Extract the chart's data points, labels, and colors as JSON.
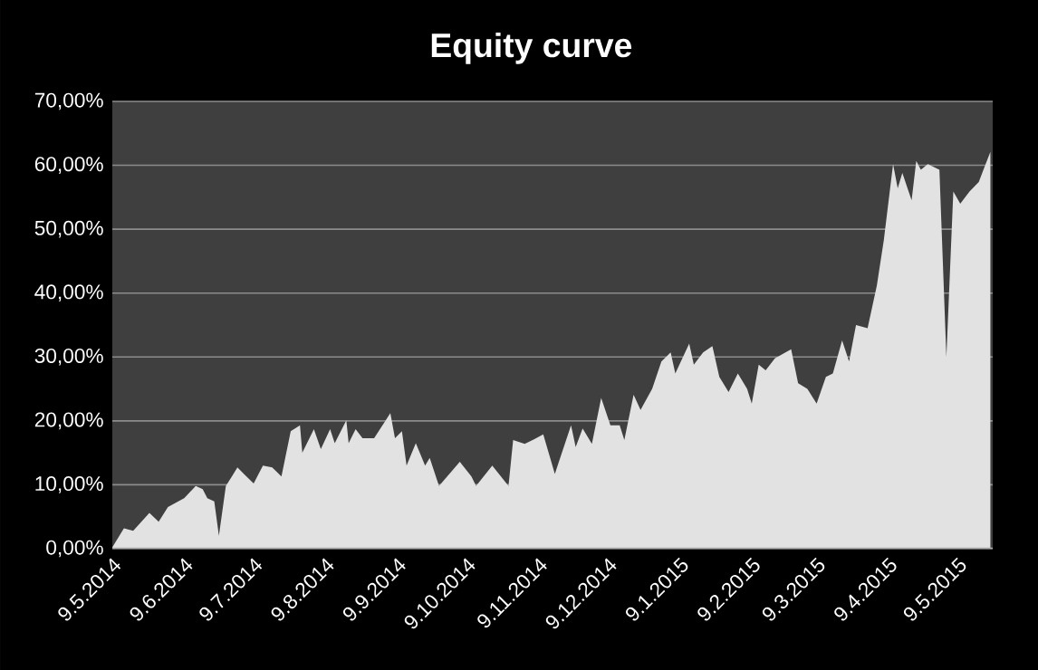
{
  "chart_data": {
    "type": "area",
    "title": "Equity curve",
    "color": "#e2e2e2",
    "grid": "y",
    "x": [
      "2014-05-09",
      "2014-05-14",
      "2014-05-18",
      "2014-05-25",
      "2014-05-29",
      "2014-06-02",
      "2014-06-09",
      "2014-06-14",
      "2014-06-17",
      "2014-06-19",
      "2014-06-22",
      "2014-06-24",
      "2014-06-27",
      "2014-07-02",
      "2014-07-05",
      "2014-07-09",
      "2014-07-13",
      "2014-07-17",
      "2014-07-21",
      "2014-07-25",
      "2014-07-29",
      "2014-07-30",
      "2014-08-04",
      "2014-08-07",
      "2014-08-11",
      "2014-08-13",
      "2014-08-18",
      "2014-08-19",
      "2014-08-22",
      "2014-08-25",
      "2014-08-30",
      "2014-09-04",
      "2014-09-06",
      "2014-09-08",
      "2014-09-11",
      "2014-09-13",
      "2014-09-17",
      "2014-09-21",
      "2014-09-23",
      "2014-09-27",
      "2014-10-06",
      "2014-10-11",
      "2014-10-13",
      "2014-10-20",
      "2014-10-27",
      "2014-10-29",
      "2014-11-03",
      "2014-11-07",
      "2014-11-11",
      "2014-11-16",
      "2014-11-23",
      "2014-11-25",
      "2014-11-28",
      "2014-12-02",
      "2014-12-06",
      "2014-12-10",
      "2014-12-14",
      "2014-12-16",
      "2014-12-20",
      "2014-12-23",
      "2014-12-28",
      "2015-01-01",
      "2015-01-05",
      "2015-01-07",
      "2015-01-13",
      "2015-01-15",
      "2015-01-19",
      "2015-01-23",
      "2015-01-26",
      "2015-01-30",
      "2015-02-03",
      "2015-02-07",
      "2015-02-09",
      "2015-02-12",
      "2015-02-15",
      "2015-02-19",
      "2015-02-26",
      "2015-03-01",
      "2015-03-05",
      "2015-03-09",
      "2015-03-13",
      "2015-03-16",
      "2015-03-20",
      "2015-03-23",
      "2015-03-26",
      "2015-03-31",
      "2015-04-04",
      "2015-04-07",
      "2015-04-11",
      "2015-04-13",
      "2015-04-15",
      "2015-04-19",
      "2015-04-21",
      "2015-04-23",
      "2015-04-26",
      "2015-05-01",
      "2015-05-04",
      "2015-05-07",
      "2015-05-10",
      "2015-05-14",
      "2015-05-18",
      "2015-05-20",
      "2015-05-23"
    ],
    "values": [
      0.2,
      3.2,
      2.8,
      5.6,
      4.2,
      6.5,
      7.9,
      9.8,
      9.3,
      7.9,
      7.4,
      2.0,
      9.8,
      12.7,
      11.6,
      10.2,
      13,
      12.7,
      11.3,
      18.4,
      19.3,
      15,
      18.7,
      15.6,
      18.7,
      16.5,
      20.1,
      16.5,
      18.7,
      17.3,
      17.3,
      20.1,
      21.2,
      17.3,
      18.4,
      13,
      16.5,
      13,
      14.2,
      9.8,
      13.6,
      11.3,
      9.8,
      13,
      9.8,
      17,
      16.4,
      17.1,
      17.9,
      11.7,
      19.3,
      15.9,
      18.8,
      16.4,
      23.6,
      19.3,
      19.3,
      17,
      24.1,
      21.7,
      25,
      29.3,
      30.7,
      27.4,
      32.1,
      28.8,
      30.7,
      31.7,
      26.9,
      24.5,
      27.4,
      25,
      22.7,
      28.8,
      27.9,
      29.8,
      31.2,
      25.9,
      25,
      22.7,
      26.9,
      27.4,
      32.6,
      29.3,
      35,
      34.5,
      41.2,
      48.3,
      60.2,
      56.4,
      58.8,
      54.5,
      60.7,
      59.3,
      60.2,
      59.3,
      30,
      55.9,
      54,
      55.9,
      57.4,
      59.3,
      62.1
    ],
    "xlim": [
      "2014-05-09",
      "2015-05-24"
    ],
    "xticks": [
      {
        "value": "2014-05-09",
        "label": "9.5.2014"
      },
      {
        "value": "2014-06-09",
        "label": "9.6.2014"
      },
      {
        "value": "2014-07-09",
        "label": "9.7.2014"
      },
      {
        "value": "2014-08-09",
        "label": "9.8.2014"
      },
      {
        "value": "2014-09-09",
        "label": "9.9.2014"
      },
      {
        "value": "2014-10-09",
        "label": "9.10.2014"
      },
      {
        "value": "2014-11-09",
        "label": "9.11.2014"
      },
      {
        "value": "2014-12-09",
        "label": "9.12.2014"
      },
      {
        "value": "2015-01-09",
        "label": "9.1.2015"
      },
      {
        "value": "2015-02-09",
        "label": "9.2.2015"
      },
      {
        "value": "2015-03-09",
        "label": "9.3.2015"
      },
      {
        "value": "2015-04-09",
        "label": "9.4.2015"
      },
      {
        "value": "2015-05-09",
        "label": "9.5.2015"
      }
    ],
    "ylim": [
      0,
      70
    ],
    "yticks": [
      {
        "value": 0,
        "label": "0,00%"
      },
      {
        "value": 10,
        "label": "10,00%"
      },
      {
        "value": 20,
        "label": "20,00%"
      },
      {
        "value": 30,
        "label": "30,00%"
      },
      {
        "value": 40,
        "label": "40,00%"
      },
      {
        "value": 50,
        "label": "50,00%"
      },
      {
        "value": 60,
        "label": "60,00%"
      },
      {
        "value": 70,
        "label": "70,00%"
      }
    ]
  }
}
